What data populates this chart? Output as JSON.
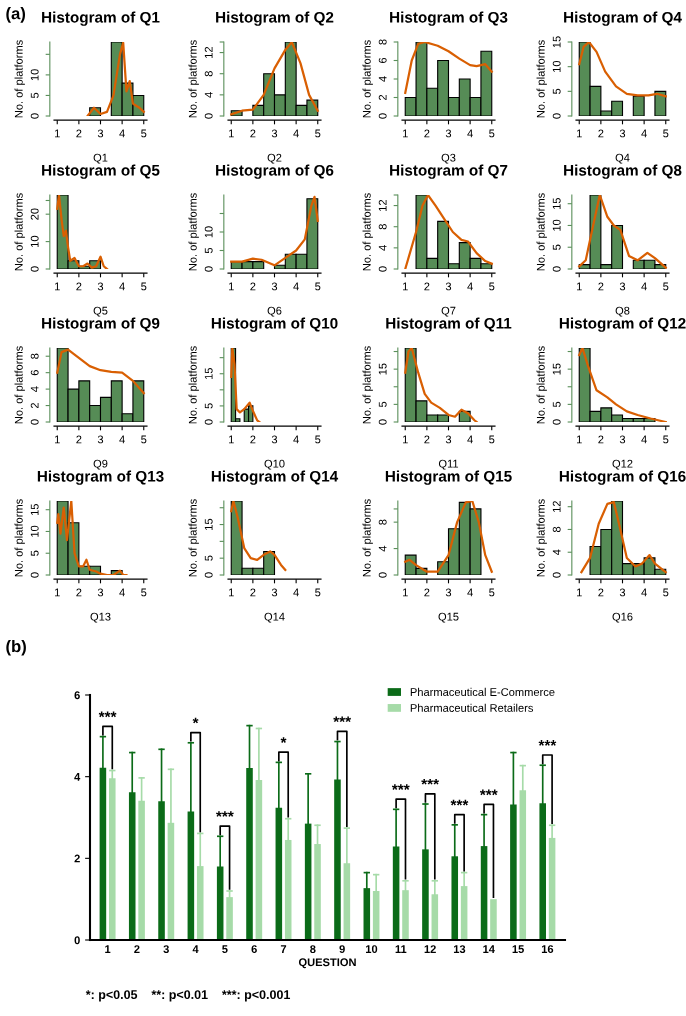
{
  "chart_data": [
    {
      "type": "histogram",
      "title": "Histogram of Q1",
      "xlabel": "Q1",
      "ylabel": "No. of platforms",
      "annotations": [
        "(a)"
      ],
      "bins": [
        2.5,
        3,
        3.5,
        4,
        4.5,
        5
      ],
      "values": [
        2,
        0,
        18,
        8,
        5
      ],
      "color": "#568c56",
      "xlim": [
        0.85,
        5.15
      ],
      "xticks": [
        1,
        2,
        3,
        4,
        5
      ],
      "ylim": [
        0,
        18
      ],
      "yticks": [
        0,
        5,
        10,
        {
          "value": 15,
          "label": null
        }
      ],
      "series": [
        {
          "type": "line",
          "color": "#d95f02",
          "x": [
            2.4,
            2.7,
            3,
            3.3,
            3.6,
            3.9,
            4.05,
            4.2,
            4.35,
            4.5,
            4.65,
            4.8,
            5
          ],
          "values": [
            0,
            2,
            0.5,
            1,
            5,
            15,
            17.8,
            6,
            8.5,
            3,
            2.5,
            2,
            1
          ]
        }
      ]
    },
    {
      "type": "histogram",
      "title": "Histogram of Q2",
      "xlabel": "Q2",
      "ylabel": "No. of platforms",
      "bins": [
        1,
        1.5,
        2,
        2.5,
        3,
        3.5,
        4,
        4.5,
        5
      ],
      "values": [
        1,
        0,
        2,
        8,
        4,
        14,
        2,
        3
      ],
      "color": "#568c56",
      "xlim": [
        0.85,
        5.15
      ],
      "xticks": [
        1,
        2,
        3,
        4,
        5
      ],
      "ylim": [
        0,
        14
      ],
      "yticks": [
        0,
        4,
        8,
        12,
        {
          "value": 14,
          "label": null
        }
      ],
      "series": [
        {
          "type": "line",
          "color": "#d95f02",
          "x": [
            1,
            1.5,
            2,
            2.5,
            3,
            3.5,
            3.8,
            4.2,
            4.6,
            5
          ],
          "values": [
            0.3,
            1,
            1.2,
            4,
            9,
            12.5,
            14,
            10,
            4,
            1
          ]
        }
      ]
    },
    {
      "type": "histogram",
      "title": "Histogram of Q3",
      "xlabel": "Q3",
      "ylabel": "No. of platforms",
      "bins": [
        1,
        1.5,
        2,
        2.5,
        3,
        3.5,
        4,
        4.5,
        5
      ],
      "values": [
        2,
        8,
        3,
        6,
        2,
        4,
        2,
        7
      ],
      "color": "#568c56",
      "xlim": [
        0.85,
        5.15
      ],
      "xticks": [
        1,
        2,
        3,
        4,
        5
      ],
      "ylim": [
        0,
        8
      ],
      "yticks": [
        0,
        2,
        4,
        6,
        8
      ],
      "series": [
        {
          "type": "line",
          "color": "#d95f02",
          "x": [
            1,
            1.3,
            1.6,
            1.9,
            2.5,
            3,
            3.5,
            4,
            4.3,
            4.7,
            5
          ],
          "values": [
            2.5,
            6,
            7.8,
            8,
            7.6,
            7,
            6.2,
            5.5,
            5.4,
            5.6,
            4.8
          ]
        }
      ]
    },
    {
      "type": "histogram",
      "title": "Histogram of Q4",
      "xlabel": "Q4",
      "ylabel": "No. of platforms",
      "bins": [
        1,
        1.5,
        2,
        2.5,
        3,
        3.5,
        4,
        4.5,
        5
      ],
      "values": [
        15,
        6,
        1,
        3,
        0,
        4,
        0,
        5
      ],
      "color": "#568c56",
      "xlim": [
        0.85,
        5.15
      ],
      "xticks": [
        1,
        2,
        3,
        4,
        5
      ],
      "ylim": [
        0,
        15
      ],
      "yticks": [
        0,
        5,
        10,
        15
      ],
      "series": [
        {
          "type": "line",
          "color": "#d95f02",
          "x": [
            1,
            1.2,
            1.45,
            1.8,
            2.2,
            2.7,
            3.2,
            3.7,
            4.2,
            4.6,
            5
          ],
          "values": [
            10.5,
            14,
            15,
            13,
            9,
            6,
            4.5,
            4.2,
            4.2,
            4.5,
            4
          ]
        }
      ]
    },
    {
      "type": "histogram",
      "title": "Histogram of Q5",
      "xlabel": "Q5",
      "ylabel": "No. of platforms",
      "bins": [
        1,
        1.5,
        2,
        2.5,
        3
      ],
      "values": [
        27,
        3,
        1,
        3
      ],
      "color": "#568c56",
      "xlim": [
        0.85,
        5.15
      ],
      "xticks": [
        1,
        2,
        3,
        4,
        5
      ],
      "ylim": [
        0,
        27
      ],
      "yticks": [
        0,
        10,
        20,
        {
          "value": 25,
          "label": null
        }
      ],
      "series": [
        {
          "type": "line",
          "color": "#d95f02",
          "x": [
            1,
            1.08,
            1.2,
            1.3,
            1.4,
            1.5,
            1.6,
            1.8,
            2,
            2.2,
            2.4,
            2.6,
            2.8,
            3,
            3.15,
            3.3
          ],
          "values": [
            22,
            27,
            18,
            12,
            14,
            8,
            3,
            4,
            1,
            1,
            2,
            0.5,
            1,
            4.5,
            1,
            0
          ]
        }
      ]
    },
    {
      "type": "histogram",
      "title": "Histogram of Q6",
      "xlabel": "Q6",
      "ylabel": "No. of platforms",
      "bins": [
        1,
        1.5,
        2,
        2.5,
        3,
        3.5,
        4,
        4.5,
        5
      ],
      "values": [
        2,
        2,
        2,
        0,
        1,
        4,
        4,
        19
      ],
      "color": "#568c56",
      "xlim": [
        0.85,
        5.15
      ],
      "xticks": [
        1,
        2,
        3,
        4,
        5
      ],
      "ylim": [
        0,
        20
      ],
      "yticks": [
        0,
        5,
        10,
        {
          "value": 15,
          "label": null
        }
      ],
      "series": [
        {
          "type": "line",
          "color": "#d95f02",
          "x": [
            1,
            1.5,
            2,
            2.4,
            3,
            3.5,
            4,
            4.4,
            4.7,
            4.85,
            5
          ],
          "values": [
            2,
            2,
            2.8,
            2.5,
            1,
            3,
            5,
            8,
            17,
            19.5,
            13
          ]
        }
      ]
    },
    {
      "type": "histogram",
      "title": "Histogram of Q7",
      "xlabel": "Q7",
      "ylabel": "No. of platforms",
      "bins": [
        1.5,
        2,
        2.5,
        3,
        3.5,
        4,
        4.5,
        5
      ],
      "values": [
        14,
        2,
        9,
        1,
        5,
        2,
        1
      ],
      "color": "#568c56",
      "xlim": [
        0.85,
        5.15
      ],
      "xticks": [
        1,
        2,
        3,
        4,
        5
      ],
      "ylim": [
        0,
        14
      ],
      "yticks": [
        0,
        4,
        8,
        12,
        {
          "value": 14,
          "label": null
        }
      ],
      "series": [
        {
          "type": "line",
          "color": "#d95f02",
          "x": [
            1,
            1.5,
            1.8,
            2.05,
            2.4,
            2.8,
            3.2,
            3.6,
            3.9,
            4.3,
            4.7,
            5
          ],
          "values": [
            0,
            7,
            12,
            14,
            12,
            9.5,
            7,
            5.5,
            5.2,
            3,
            1.5,
            1
          ]
        }
      ]
    },
    {
      "type": "histogram",
      "title": "Histogram of Q8",
      "xlabel": "Q8",
      "ylabel": "No. of platforms",
      "bins": [
        1,
        1.5,
        2,
        2.5,
        3,
        3.5,
        4,
        4.5,
        5
      ],
      "values": [
        1,
        17,
        1,
        10,
        0,
        2,
        2,
        1
      ],
      "color": "#568c56",
      "xlim": [
        0.85,
        5.15
      ],
      "xticks": [
        1,
        2,
        3,
        4,
        5
      ],
      "ylim": [
        0,
        17
      ],
      "yticks": [
        0,
        5,
        10,
        15
      ],
      "series": [
        {
          "type": "line",
          "color": "#d95f02",
          "x": [
            1,
            1.3,
            1.6,
            1.95,
            2.3,
            2.6,
            2.9,
            3.3,
            3.7,
            4.15,
            4.5,
            5
          ],
          "values": [
            0.6,
            2,
            9,
            17,
            12,
            10,
            9,
            3,
            2,
            3.7,
            2.5,
            0.3
          ]
        }
      ]
    },
    {
      "type": "histogram",
      "title": "Histogram of Q9",
      "xlabel": "Q9",
      "ylabel": "No. of platforms",
      "bins": [
        1,
        1.5,
        2,
        2.5,
        3,
        3.5,
        4,
        4.5,
        5
      ],
      "values": [
        9,
        4,
        5,
        2,
        3,
        5,
        1,
        5
      ],
      "color": "#568c56",
      "xlim": [
        0.85,
        5.15
      ],
      "xticks": [
        1,
        2,
        3,
        4,
        5
      ],
      "ylim": [
        0,
        9
      ],
      "yticks": [
        0,
        2,
        4,
        6,
        8
      ],
      "series": [
        {
          "type": "line",
          "color": "#d95f02",
          "x": [
            1,
            1.2,
            1.5,
            2,
            2.5,
            3,
            3.5,
            4,
            4.5,
            5
          ],
          "values": [
            6,
            8.5,
            8.8,
            7.8,
            6.8,
            6.3,
            6.1,
            6,
            5,
            3.5
          ]
        }
      ]
    },
    {
      "type": "histogram",
      "title": "Histogram of Q10",
      "xlabel": "Q10",
      "ylabel": "No. of platforms",
      "bins": [
        1,
        1.2,
        1.4,
        1.6,
        1.8,
        2
      ],
      "values": [
        23,
        1,
        0,
        4,
        5
      ],
      "color": "#568c56",
      "xlim": [
        0.85,
        5.15
      ],
      "xticks": [
        1,
        2,
        3,
        4,
        5
      ],
      "ylim": [
        0,
        23
      ],
      "yticks": [
        0,
        5,
        {
          "value": 10,
          "label": null
        },
        15,
        {
          "value": 20,
          "label": null
        }
      ],
      "series": [
        {
          "type": "line",
          "color": "#d95f02",
          "x": [
            1,
            1.05,
            1.15,
            1.25,
            1.4,
            1.6,
            1.85,
            2,
            2.2,
            2.3
          ],
          "values": [
            14,
            23,
            18,
            4,
            3,
            4,
            6,
            3.5,
            0.5,
            0
          ]
        }
      ]
    },
    {
      "type": "histogram",
      "title": "Histogram of Q11",
      "xlabel": "Q11",
      "ylabel": "No. of platforms",
      "bins": [
        1,
        1.5,
        2,
        2.5,
        3,
        3.5,
        4
      ],
      "values": [
        21,
        6,
        2,
        2,
        0,
        3
      ],
      "color": "#568c56",
      "xlim": [
        0.85,
        5.15
      ],
      "xticks": [
        1,
        2,
        3,
        4,
        5
      ],
      "ylim": [
        0,
        21
      ],
      "yticks": [
        0,
        5,
        {
          "value": 10,
          "label": null
        },
        15,
        {
          "value": 20,
          "label": null
        }
      ],
      "series": [
        {
          "type": "line",
          "color": "#d95f02",
          "x": [
            1,
            1.15,
            1.3,
            1.6,
            1.9,
            2.2,
            2.6,
            3,
            3.3,
            3.6,
            3.9,
            4.2,
            4.3
          ],
          "values": [
            14,
            20,
            21,
            14,
            8,
            5.5,
            4,
            2,
            1.5,
            3.5,
            2.5,
            0.5,
            0
          ]
        }
      ]
    },
    {
      "type": "histogram",
      "title": "Histogram of Q12",
      "xlabel": "Q12",
      "ylabel": "No. of platforms",
      "bins": [
        1,
        1.5,
        2,
        2.5,
        3,
        3.5,
        4,
        4.5
      ],
      "values": [
        21,
        3,
        4,
        2,
        1,
        1,
        1
      ],
      "color": "#568c56",
      "xlim": [
        0.85,
        5.15
      ],
      "xticks": [
        1,
        2,
        3,
        4,
        5
      ],
      "ylim": [
        0,
        21
      ],
      "yticks": [
        0,
        5,
        {
          "value": 10,
          "label": null
        },
        15,
        {
          "value": 20,
          "label": null
        }
      ],
      "series": [
        {
          "type": "line",
          "color": "#d95f02",
          "x": [
            1,
            1.15,
            1.4,
            1.8,
            2.3,
            2.7,
            3.2,
            3.7,
            4.3,
            5
          ],
          "values": [
            19,
            21,
            16,
            9,
            7,
            5,
            3,
            2,
            1,
            0
          ]
        }
      ]
    },
    {
      "type": "histogram",
      "title": "Histogram of Q13",
      "xlabel": "Q13",
      "ylabel": "No. of platforms",
      "bins": [
        1,
        1.5,
        2,
        2.5,
        3,
        3.5,
        4
      ],
      "values": [
        17,
        12,
        2,
        2,
        0,
        1
      ],
      "color": "#568c56",
      "xlim": [
        0.85,
        5.15
      ],
      "xticks": [
        1,
        2,
        3,
        4,
        5
      ],
      "ylim": [
        0,
        17
      ],
      "yticks": [
        0,
        5,
        10,
        15
      ],
      "series": [
        {
          "type": "line",
          "color": "#d95f02",
          "x": [
            1,
            1.05,
            1.15,
            1.3,
            1.45,
            1.65,
            1.8,
            2,
            2.2,
            2.35,
            2.5,
            2.8,
            3,
            3.3,
            3.6,
            3.9,
            4.05,
            4.2
          ],
          "values": [
            12,
            14,
            9.5,
            15.5,
            8,
            17,
            5,
            2,
            2,
            3.5,
            1.2,
            0.8,
            0.3,
            0,
            0,
            1,
            0,
            0
          ]
        }
      ]
    },
    {
      "type": "histogram",
      "title": "Histogram of Q14",
      "xlabel": "Q14",
      "ylabel": "No. of platforms",
      "bins": [
        1,
        1.5,
        2,
        2.5,
        3
      ],
      "values": [
        22,
        2,
        2,
        7
      ],
      "color": "#568c56",
      "xlim": [
        0.85,
        5.15
      ],
      "xticks": [
        1,
        2,
        3,
        4,
        5
      ],
      "ylim": [
        0,
        22
      ],
      "yticks": [
        0,
        5,
        {
          "value": 10,
          "label": null
        },
        15,
        {
          "value": 20,
          "label": null
        }
      ],
      "series": [
        {
          "type": "line",
          "color": "#d95f02",
          "x": [
            1,
            1.1,
            1.3,
            1.6,
            1.9,
            2.2,
            2.5,
            2.8,
            3,
            3.3,
            3.5
          ],
          "values": [
            19,
            22,
            17,
            8,
            5,
            4.5,
            6,
            7,
            6,
            3,
            1.5
          ]
        }
      ]
    },
    {
      "type": "histogram",
      "title": "Histogram of Q15",
      "xlabel": "Q15",
      "ylabel": "No. of platforms",
      "bins": [
        1,
        1.5,
        2,
        2.5,
        3,
        3.5,
        4,
        4.5
      ],
      "values": [
        3,
        1,
        0,
        2,
        7,
        11,
        10
      ],
      "color": "#568c56",
      "xlim": [
        0.85,
        5.15
      ],
      "xticks": [
        1,
        2,
        3,
        4,
        5
      ],
      "ylim": [
        0,
        11.2
      ],
      "yticks": [
        0,
        4,
        8,
        {
          "value": 10,
          "label": null
        }
      ],
      "series": [
        {
          "type": "line",
          "color": "#d95f02",
          "x": [
            1,
            1.2,
            1.5,
            2,
            2.5,
            3,
            3.4,
            3.8,
            4.1,
            4.4,
            4.7,
            5
          ],
          "values": [
            2,
            2.3,
            1.5,
            0.5,
            0.5,
            3,
            8,
            11,
            11.2,
            8,
            3,
            0.5
          ]
        }
      ]
    },
    {
      "type": "histogram",
      "title": "Histogram of Q16",
      "xlabel": "Q16",
      "ylabel": "No. of platforms",
      "bins": [
        1.5,
        2,
        2.5,
        3,
        3.5,
        4,
        4.5,
        5
      ],
      "values": [
        5,
        8,
        13,
        2,
        2,
        3,
        1
      ],
      "color": "#568c56",
      "xlim": [
        0.85,
        5.15
      ],
      "xticks": [
        1,
        2,
        3,
        4,
        5
      ],
      "ylim": [
        0,
        13
      ],
      "yticks": [
        0,
        4,
        8,
        12
      ],
      "series": [
        {
          "type": "line",
          "color": "#d95f02",
          "x": [
            1.1,
            1.5,
            1.9,
            2.3,
            2.6,
            2.9,
            3.2,
            3.6,
            3.9,
            4.25,
            4.5,
            5
          ],
          "values": [
            0.5,
            3,
            9,
            12.5,
            12.8,
            8,
            3,
            1.5,
            2,
            3.5,
            2,
            0.5
          ]
        }
      ]
    },
    {
      "type": "bar",
      "xlabel": "QUESTION",
      "categories": [
        "1",
        "2",
        "3",
        "4",
        "5",
        "6",
        "7",
        "8",
        "9",
        "10",
        "11",
        "12",
        "13",
        "14",
        "15",
        "16"
      ],
      "ylim": [
        0,
        6
      ],
      "yticks": [
        0,
        2,
        4,
        6
      ],
      "legend": "top right",
      "grid": false,
      "series": [
        {
          "name": "Pharmaceutical E-Commerce",
          "color": "#0b6b18",
          "values": [
            4.22,
            3.62,
            3.4,
            3.15,
            1.8,
            4.21,
            3.24,
            2.85,
            3.93,
            1.27,
            2.29,
            2.22,
            2.05,
            2.3,
            3.32,
            3.35
          ],
          "errors": [
            [
              4.22,
              4.98
            ],
            [
              3.62,
              4.59
            ],
            [
              3.4,
              4.67
            ],
            [
              3.15,
              4.83
            ],
            [
              1.8,
              2.54
            ],
            [
              4.21,
              5.25
            ],
            [
              3.24,
              4.35
            ],
            [
              2.85,
              4.07
            ],
            [
              3.93,
              4.86
            ],
            [
              1.27,
              1.65
            ],
            [
              2.29,
              3.2
            ],
            [
              2.22,
              3.33
            ],
            [
              2.05,
              2.82
            ],
            [
              2.3,
              3.07
            ],
            [
              3.32,
              4.59
            ],
            [
              3.35,
              4.28
            ]
          ]
        },
        {
          "name": "Pharmaceutical Retailers",
          "color": "#a6dba8",
          "values": [
            3.96,
            3.41,
            2.87,
            1.81,
            1.05,
            3.92,
            2.45,
            2.35,
            1.88,
            1.2,
            1.22,
            1.12,
            1.32,
            1.0,
            3.67,
            2.5
          ],
          "errors": [
            [
              3.96,
              4.15
            ],
            [
              3.41,
              3.97
            ],
            [
              2.87,
              4.18
            ],
            [
              1.81,
              2.61
            ],
            [
              1.05,
              1.2
            ],
            [
              3.92,
              5.18
            ],
            [
              2.45,
              2.97
            ],
            [
              2.35,
              2.81
            ],
            [
              1.88,
              2.74
            ],
            [
              1.2,
              1.6
            ],
            [
              1.22,
              1.45
            ],
            [
              1.12,
              1.45
            ],
            [
              1.32,
              1.65
            ],
            [
              1.0,
              1.0
            ],
            [
              3.67,
              4.27
            ],
            [
              2.5,
              2.81
            ]
          ]
        }
      ],
      "annotations": [
        "(b)",
        {
          "text": "***",
          "x": "1",
          "y": 4.98
        },
        {
          "text": "*",
          "x": "4",
          "y": 4.83
        },
        {
          "text": "***",
          "x": "5",
          "y": 2.54
        },
        {
          "text": "*",
          "x": "7",
          "y": 4.35
        },
        {
          "text": "***",
          "x": "9",
          "y": 4.86
        },
        {
          "text": "***",
          "x": "11",
          "y": 3.2
        },
        {
          "text": "***",
          "x": "12",
          "y": 3.33
        },
        {
          "text": "***",
          "x": "13",
          "y": 2.82
        },
        {
          "text": "***",
          "x": "14",
          "y": 3.07
        },
        {
          "text": "***",
          "x": "16",
          "y": 4.28
        },
        "*: p<0.05    **: p<0.01    ***: p<0.001"
      ]
    }
  ]
}
